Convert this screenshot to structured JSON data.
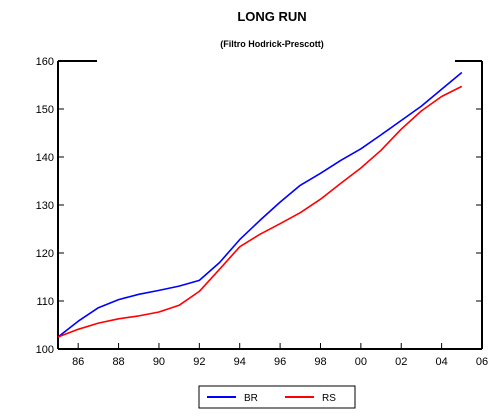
{
  "chart_data": {
    "type": "line",
    "title": "LONG RUN",
    "subtitle": "(Filtro Hodrick-Prescott)",
    "xlabel": "",
    "ylabel": "",
    "x_ticks": [
      "86",
      "88",
      "90",
      "92",
      "94",
      "96",
      "98",
      "00",
      "02",
      "04",
      "06"
    ],
    "xlim": [
      1985,
      2006
    ],
    "ylim": [
      100,
      160
    ],
    "y_ticks": [
      "100",
      "110",
      "120",
      "130",
      "140",
      "150",
      "160"
    ],
    "grid": false,
    "legend_position": "bottom-center",
    "x": [
      1985,
      1986,
      1987,
      1988,
      1989,
      1990,
      1991,
      1992,
      1993,
      1994,
      1995,
      1996,
      1997,
      1998,
      1999,
      2000,
      2001,
      2002,
      2003,
      2004,
      2005
    ],
    "series": [
      {
        "name": "BR",
        "color": "#0000ff",
        "values": [
          102.5,
          105.8,
          108.6,
          110.3,
          111.4,
          112.2,
          113.1,
          114.3,
          118.0,
          122.8,
          126.8,
          130.6,
          134.1,
          136.6,
          139.3,
          141.7,
          144.6,
          147.6,
          150.6,
          154.1,
          157.6
        ]
      },
      {
        "name": "RS",
        "color": "#ff0000",
        "values": [
          102.5,
          104.1,
          105.4,
          106.3,
          106.9,
          107.7,
          109.1,
          112.0,
          116.6,
          121.3,
          123.9,
          126.1,
          128.4,
          131.2,
          134.5,
          137.7,
          141.4,
          145.8,
          149.6,
          152.6,
          154.7
        ]
      }
    ]
  }
}
